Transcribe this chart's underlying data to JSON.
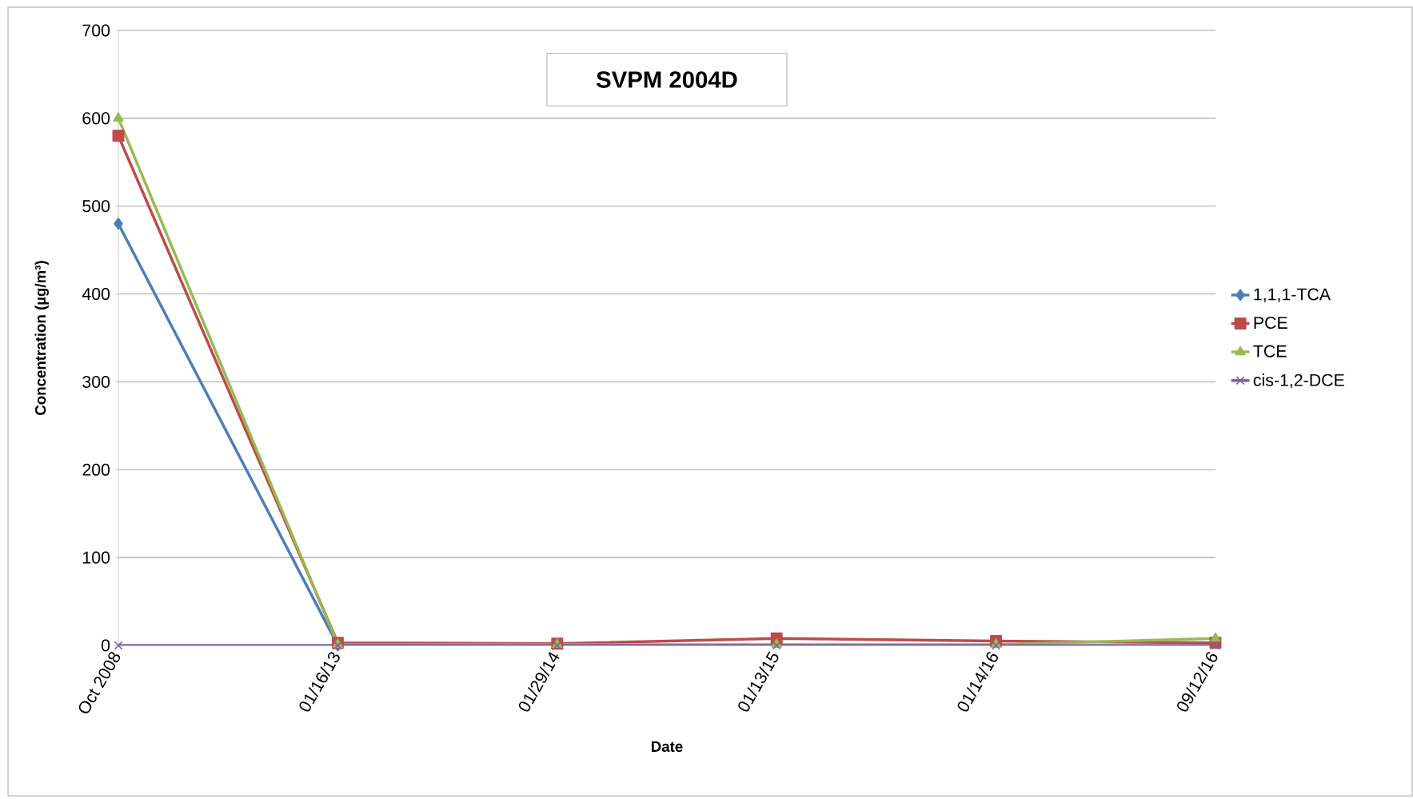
{
  "chart_data": {
    "type": "line",
    "title": "SVPM 2004D",
    "xlabel": "Date",
    "ylabel": "Concentration (µg/m³)",
    "categories": [
      "Oct 2008",
      "01/16/13",
      "01/29/14",
      "01/13/15",
      "01/14/16",
      "09/12/16"
    ],
    "series": [
      {
        "name": "1,1,1-TCA",
        "color": "#4a7ebb",
        "marker": "diamond",
        "values": [
          480,
          0,
          null,
          null,
          null,
          null
        ]
      },
      {
        "name": "PCE",
        "color": "#be4b48",
        "marker": "square",
        "values": [
          580,
          3,
          2,
          8,
          5,
          3
        ]
      },
      {
        "name": "TCE",
        "color": "#98b954",
        "marker": "triangle",
        "values": [
          600,
          1,
          1,
          1,
          1,
          8
        ]
      },
      {
        "name": "cis-1,2-DCE",
        "color": "#7d60a0",
        "marker": "cross",
        "values": [
          0,
          0,
          0,
          0,
          0,
          0
        ]
      }
    ],
    "ylim": [
      0,
      700
    ],
    "yticks": [
      0,
      100,
      200,
      300,
      400,
      500,
      600,
      700
    ],
    "grid": "y",
    "legend": "right"
  }
}
